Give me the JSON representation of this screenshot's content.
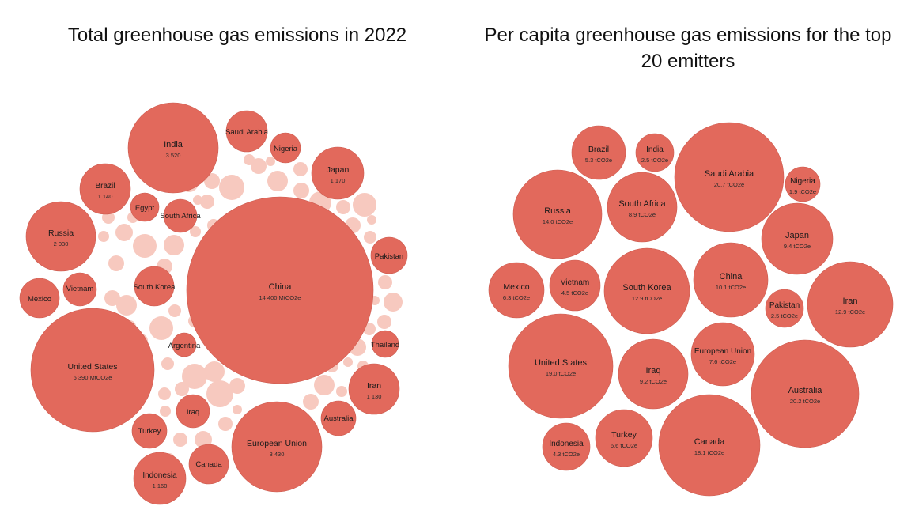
{
  "colors": {
    "bubble": "#e2695c",
    "bubble_stroke": "#cc5a4e",
    "filler": "#f7c9bf"
  },
  "chart_data": [
    {
      "type": "bubble",
      "title": "Total greenhouse gas emissions in 2022",
      "unit": "MtCO2e",
      "bubbles": [
        {
          "name": "China",
          "value": 14400,
          "label": "14 400 MtCO2e"
        },
        {
          "name": "United States",
          "value": 6390,
          "label": "6 390 MtCO2e"
        },
        {
          "name": "India",
          "value": 3520,
          "label": "3 520"
        },
        {
          "name": "European Union",
          "value": 3430,
          "label": "3 430"
        },
        {
          "name": "Russia",
          "value": 2030,
          "label": "2 030"
        },
        {
          "name": "Japan",
          "value": 1170,
          "label": "1 170"
        },
        {
          "name": "Indonesia",
          "value": 1160,
          "label": "1 160"
        },
        {
          "name": "Brazil",
          "value": 1140,
          "label": "1 140"
        },
        {
          "name": "Iran",
          "value": 1130,
          "label": "1 130"
        },
        {
          "name": "Saudi Arabia",
          "value": null,
          "label": ""
        },
        {
          "name": "Nigeria",
          "value": null,
          "label": ""
        },
        {
          "name": "South Africa",
          "value": null,
          "label": ""
        },
        {
          "name": "Egypt",
          "value": null,
          "label": ""
        },
        {
          "name": "Vietnam",
          "value": null,
          "label": ""
        },
        {
          "name": "Mexico",
          "value": null,
          "label": ""
        },
        {
          "name": "South Korea",
          "value": null,
          "label": ""
        },
        {
          "name": "Argentina",
          "value": null,
          "label": ""
        },
        {
          "name": "Pakistan",
          "value": null,
          "label": ""
        },
        {
          "name": "Thailand",
          "value": null,
          "label": ""
        },
        {
          "name": "Australia",
          "value": null,
          "label": ""
        },
        {
          "name": "Iraq",
          "value": null,
          "label": ""
        },
        {
          "name": "Turkey",
          "value": null,
          "label": ""
        },
        {
          "name": "Canada",
          "value": null,
          "label": ""
        }
      ]
    },
    {
      "type": "bubble",
      "title": "Per capita greenhouse gas emissions for the top 20 emitters",
      "unit": "tCO2e",
      "bubbles": [
        {
          "name": "Saudi Arabia",
          "value": 20.7,
          "label": "20.7 tCO2e"
        },
        {
          "name": "Australia",
          "value": 20.2,
          "label": "20.2 tCO2e"
        },
        {
          "name": "United States",
          "value": 19.0,
          "label": "19.0 tCO2e"
        },
        {
          "name": "Canada",
          "value": 18.1,
          "label": "18.1 tCO2e"
        },
        {
          "name": "Russia",
          "value": 14.0,
          "label": "14.0 tCO2e"
        },
        {
          "name": "South Korea",
          "value": 12.9,
          "label": "12.9 tCO2e"
        },
        {
          "name": "Iran",
          "value": 12.9,
          "label": "12.9 tCO2e"
        },
        {
          "name": "China",
          "value": 10.1,
          "label": "10.1 tCO2e"
        },
        {
          "name": "Japan",
          "value": 9.4,
          "label": "9.4 tCO2e"
        },
        {
          "name": "Iraq",
          "value": 9.2,
          "label": "9.2 tCO2e"
        },
        {
          "name": "South Africa",
          "value": 8.9,
          "label": "8.9 tCO2e"
        },
        {
          "name": "European Union",
          "value": 7.6,
          "label": "7.6 tCO2e"
        },
        {
          "name": "Turkey",
          "value": 6.6,
          "label": "6.6 tCO2e"
        },
        {
          "name": "Mexico",
          "value": 6.3,
          "label": "6.3 tCO2e"
        },
        {
          "name": "Brazil",
          "value": 5.3,
          "label": "5.3 tCO2e"
        },
        {
          "name": "Vietnam",
          "value": 4.5,
          "label": "4.5 tCO2e"
        },
        {
          "name": "Indonesia",
          "value": 4.3,
          "label": "4.3 tCO2e"
        },
        {
          "name": "India",
          "value": 2.5,
          "label": "2.5 tCO2e"
        },
        {
          "name": "Pakistan",
          "value": 2.5,
          "label": "2.5 tCO2e"
        },
        {
          "name": "Nigeria",
          "value": 1.9,
          "label": "1.9 tCO2e"
        }
      ]
    }
  ]
}
